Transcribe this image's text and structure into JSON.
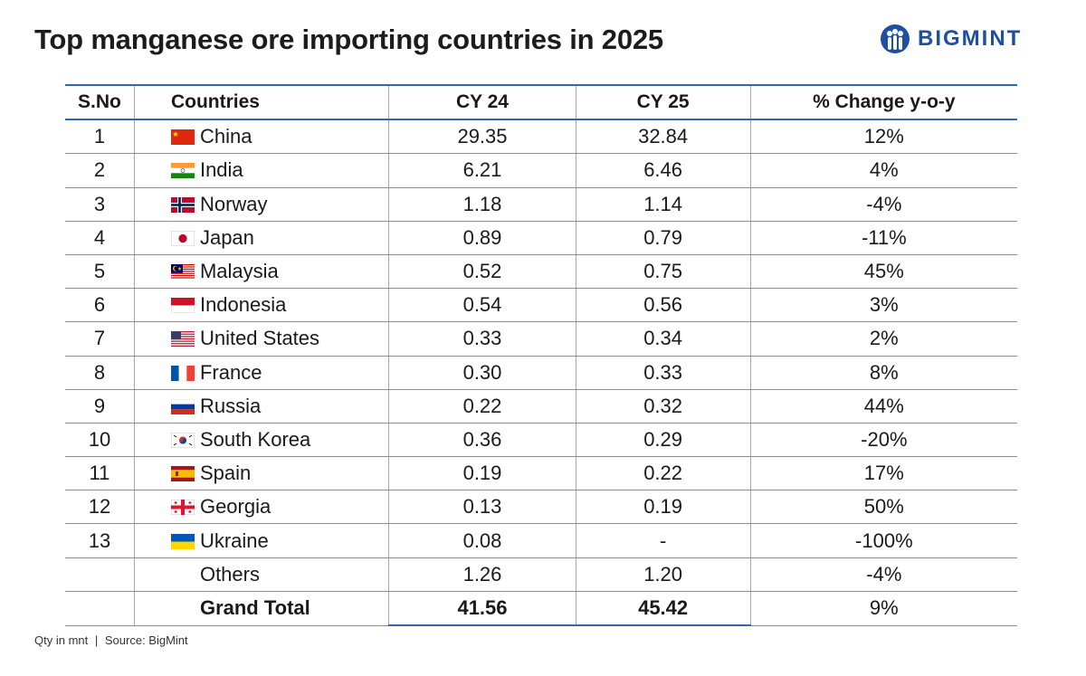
{
  "header": {
    "title": "Top manganese ore importing countries in 2025",
    "brand": "BIGMINT",
    "brand_color": "#1f4fa0"
  },
  "footer": {
    "unit": "Qty in mnt",
    "separator": "|",
    "source": "Source: BigMint"
  },
  "chart_data": {
    "type": "table",
    "title": "Top manganese ore importing countries in 2025",
    "unit": "Qty in mnt",
    "columns": [
      "S.No",
      "Countries",
      "CY 24",
      "CY 25",
      "% Change y-o-y"
    ],
    "rows": [
      {
        "sno": "1",
        "country": "China",
        "flag": "china-flag-icon",
        "cy24": "29.35",
        "cy25": "32.84",
        "pct": "12%"
      },
      {
        "sno": "2",
        "country": "India",
        "flag": "india-flag-icon",
        "cy24": "6.21",
        "cy25": "6.46",
        "pct": "4%"
      },
      {
        "sno": "3",
        "country": "Norway",
        "flag": "norway-flag-icon",
        "cy24": "1.18",
        "cy25": "1.14",
        "pct": "-4%"
      },
      {
        "sno": "4",
        "country": "Japan",
        "flag": "japan-flag-icon",
        "cy24": "0.89",
        "cy25": "0.79",
        "pct": "-11%"
      },
      {
        "sno": "5",
        "country": "Malaysia",
        "flag": "malaysia-flag-icon",
        "cy24": "0.52",
        "cy25": "0.75",
        "pct": "45%"
      },
      {
        "sno": "6",
        "country": "Indonesia",
        "flag": "indonesia-flag-icon",
        "cy24": "0.54",
        "cy25": "0.56",
        "pct": "3%"
      },
      {
        "sno": "7",
        "country": "United States",
        "flag": "usa-flag-icon",
        "cy24": "0.33",
        "cy25": "0.34",
        "pct": "2%"
      },
      {
        "sno": "8",
        "country": "France",
        "flag": "france-flag-icon",
        "cy24": "0.30",
        "cy25": "0.33",
        "pct": "8%"
      },
      {
        "sno": "9",
        "country": "Russia",
        "flag": "russia-flag-icon",
        "cy24": "0.22",
        "cy25": "0.32",
        "pct": "44%"
      },
      {
        "sno": "10",
        "country": "South Korea",
        "flag": "south-korea-flag-icon",
        "cy24": "0.36",
        "cy25": "0.29",
        "pct": "-20%"
      },
      {
        "sno": "11",
        "country": "Spain",
        "flag": "spain-flag-icon",
        "cy24": "0.19",
        "cy25": "0.22",
        "pct": "17%"
      },
      {
        "sno": "12",
        "country": "Georgia",
        "flag": "georgia-flag-icon",
        "cy24": "0.13",
        "cy25": "0.19",
        "pct": "50%"
      },
      {
        "sno": "13",
        "country": "Ukraine",
        "flag": "ukraine-flag-icon",
        "cy24": "0.08",
        "cy25": "-",
        "pct": "-100%"
      },
      {
        "sno": "",
        "country": "Others",
        "flag": "",
        "cy24": "1.26",
        "cy25": "1.20",
        "pct": "-4%"
      }
    ],
    "total": {
      "label": "Grand Total",
      "cy24": "41.56",
      "cy25": "45.42",
      "pct": "9%"
    }
  }
}
